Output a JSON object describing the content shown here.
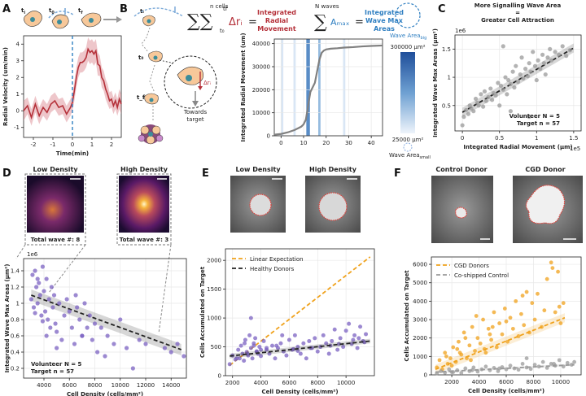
{
  "panels": [
    "A",
    "B",
    "C",
    "D",
    "E",
    "F"
  ],
  "colors": {
    "purple": "#7b62c2",
    "orange": "#f0a21c",
    "grey": "#9a9a9a",
    "red": "#b5313a",
    "blue": "#2f7fc1"
  },
  "panelA": {
    "stage_labels": [
      "t",
      "t",
      "t"
    ],
    "stage_subscripts": [
      "i",
      "0",
      "f"
    ],
    "chart_data": {
      "type": "line",
      "xlabel": "Time(min)",
      "ylabel": "Radial Velocity (um/min)",
      "xlim": [
        -2.5,
        2.5
      ],
      "ylim": [
        -1.6,
        4.5
      ],
      "xticks": [
        -2,
        -1,
        0,
        1,
        2
      ],
      "yticks": [
        -1,
        0,
        1,
        2,
        3,
        4
      ],
      "x": [
        -2.5,
        -2.3,
        -2.1,
        -1.9,
        -1.7,
        -1.5,
        -1.3,
        -1.1,
        -0.9,
        -0.7,
        -0.5,
        -0.3,
        -0.1,
        0.0,
        0.1,
        0.2,
        0.3,
        0.4,
        0.5,
        0.6,
        0.7,
        0.8,
        0.9,
        1.0,
        1.1,
        1.2,
        1.3,
        1.4,
        1.5,
        1.6,
        1.7,
        1.8,
        1.9,
        2.0,
        2.1,
        2.2,
        2.3,
        2.4,
        2.5
      ],
      "mean": [
        0.0,
        0.3,
        -0.4,
        0.4,
        -0.3,
        0.2,
        -0.1,
        0.4,
        0.6,
        0.2,
        0.3,
        -0.2,
        0.2,
        0.5,
        1.2,
        2.0,
        2.6,
        2.9,
        2.9,
        3.0,
        3.2,
        3.7,
        3.5,
        3.6,
        3.4,
        3.6,
        2.8,
        2.7,
        2.0,
        1.8,
        1.3,
        1.0,
        0.6,
        0.7,
        0.3,
        0.6,
        0.2,
        0.7,
        0.4
      ],
      "err": [
        0.6,
        0.5,
        0.5,
        0.5,
        0.5,
        0.5,
        0.5,
        0.5,
        0.5,
        0.5,
        0.5,
        0.5,
        0.5,
        0.5,
        0.6,
        0.6,
        0.6,
        0.6,
        0.6,
        0.6,
        0.6,
        0.7,
        0.7,
        0.7,
        0.7,
        0.7,
        0.7,
        0.6,
        0.6,
        0.6,
        0.6,
        0.6,
        0.5,
        0.5,
        0.5,
        0.5,
        0.5,
        0.6,
        0.6
      ]
    }
  },
  "panelB": {
    "eq1_top": "n cells",
    "eq1_sum": "∑∑",
    "eq1_sub": "t₀",
    "eq1_sup": "tf",
    "eq1_term": "Δrᵢ",
    "eq1_eq": "=",
    "eq1_label": [
      "Integrated",
      "Radial",
      "Movement"
    ],
    "eq2_top": "N waves",
    "eq2_sum": "∑",
    "eq2_term": "Aₘₐₓ",
    "eq2_eq": "=",
    "eq2_label": [
      "Integrated",
      "Wave Max",
      "Areas"
    ],
    "wave_big": "Wave Area",
    "wave_big_sub": "big",
    "wave_small": "Wave Area",
    "wave_small_sub": "small",
    "cbar_top": "300000 µm²",
    "cbar_bottom": "25000 µm²",
    "diagram_labels": {
      "t_i": "tᵢ",
      "t_0": "t₀",
      "t_f": "t_f",
      "dr": "Δrᵢ",
      "towards": [
        "Towards",
        "target"
      ]
    },
    "chart_data": {
      "type": "line",
      "xlabel": "",
      "ylabel": "Integrated Radial Movement (um)",
      "xlim": [
        -3,
        45
      ],
      "ylim": [
        0,
        42000
      ],
      "xticks": [
        0,
        10,
        20,
        30,
        40
      ],
      "yticks": [
        0,
        10000,
        20000,
        30000,
        40000
      ],
      "x": [
        -3,
        0,
        3,
        6,
        8,
        9,
        10,
        11,
        12,
        13,
        14,
        15,
        16,
        17,
        18,
        19,
        20,
        22,
        25,
        28,
        32,
        36,
        40,
        45
      ],
      "y": [
        500,
        800,
        1500,
        2500,
        3500,
        4000,
        5000,
        7000,
        13000,
        19000,
        21000,
        23000,
        28000,
        33000,
        36000,
        37000,
        37500,
        37800,
        38000,
        38300,
        38500,
        38800,
        39000,
        39200
      ],
      "wave_bands": [
        {
          "center": 0.5,
          "width": 1.0,
          "area": 40000
        },
        {
          "center": 6.0,
          "width": 1.0,
          "area": 30000
        },
        {
          "center": 12.0,
          "width": 1.6,
          "area": 300000
        },
        {
          "center": 17.0,
          "width": 1.0,
          "area": 130000
        },
        {
          "center": 28.0,
          "width": 1.0,
          "area": 60000
        }
      ]
    }
  },
  "panelC": {
    "title": [
      "More Signalling Wave Area",
      "=",
      "Greater Cell Attraction"
    ],
    "stats": [
      "Volunteer N = 5",
      "Target n = 57"
    ],
    "chart_data": {
      "type": "scatter",
      "xlabel": "Integrated Radial Movement (µm)",
      "ylabel": "Integrated Wave Max Areas (µm²)",
      "x_exponent": "1e5",
      "y_exponent": "1e6",
      "xlim": [
        -0.1,
        1.6
      ],
      "ylim": [
        0.05,
        1.75
      ],
      "xticks": [
        0.0,
        0.5,
        1.0,
        1.5
      ],
      "yticks": [
        0.5,
        1.0,
        1.5
      ],
      "fit": {
        "x": [
          0.0,
          1.5
        ],
        "y": [
          0.38,
          1.52
        ]
      },
      "x": [
        0.0,
        0.02,
        0.05,
        0.08,
        0.1,
        0.12,
        0.15,
        0.18,
        0.2,
        0.22,
        0.25,
        0.28,
        0.3,
        0.32,
        0.35,
        0.38,
        0.4,
        0.42,
        0.45,
        0.48,
        0.5,
        0.52,
        0.55,
        0.58,
        0.6,
        0.62,
        0.65,
        0.68,
        0.7,
        0.72,
        0.75,
        0.78,
        0.8,
        0.82,
        0.85,
        0.88,
        0.9,
        0.92,
        0.95,
        0.98,
        1.0,
        1.02,
        1.05,
        1.08,
        1.1,
        1.12,
        1.15,
        1.18,
        1.2,
        1.25,
        1.3,
        1.35,
        1.4,
        1.45,
        0.55,
        0.65,
        0.9
      ],
      "y": [
        0.15,
        0.3,
        0.42,
        0.35,
        0.5,
        0.45,
        0.4,
        0.62,
        0.55,
        0.5,
        0.7,
        0.48,
        0.75,
        0.58,
        0.65,
        0.8,
        0.6,
        0.72,
        0.68,
        0.9,
        0.5,
        0.85,
        0.78,
        1.0,
        0.7,
        0.95,
        0.88,
        1.1,
        0.82,
        1.2,
        0.92,
        1.05,
        1.35,
        0.98,
        1.15,
        1.02,
        1.25,
        1.1,
        1.45,
        1.2,
        0.95,
        1.3,
        1.15,
        1.4,
        1.25,
        1.05,
        1.35,
        1.5,
        1.3,
        1.45,
        1.4,
        1.55,
        1.38,
        1.48,
        1.55,
        0.4,
        0.3
      ]
    }
  },
  "panelD": {
    "low_title": "Low Density",
    "high_title": "High Density",
    "low_wave": "Total wave #: 8",
    "high_wave": "Total wave #: 3",
    "stats": [
      "Volunteer N = 5",
      "Target n = 57"
    ],
    "chart_data": {
      "type": "scatter",
      "xlabel": "Cell Density (cells/mm²)",
      "ylabel": "Integrated Wave Max Areas (µm²)",
      "y_exponent": "1e6",
      "xlim": [
        2400,
        15200
      ],
      "ylim": [
        0.08,
        1.55
      ],
      "xticks": [
        4000,
        6000,
        8000,
        10000,
        12000,
        14000
      ],
      "xtick_labels": [
        "4000",
        "6000",
        "8000",
        "10000",
        "12000",
        "14000"
      ],
      "yticks": [
        0.2,
        0.4,
        0.6,
        0.8,
        1.0,
        1.2,
        1.4
      ],
      "fit": {
        "x": [
          3000,
          14800
        ],
        "y": [
          1.1,
          0.43
        ]
      },
      "x": [
        3000,
        3100,
        3200,
        3300,
        3400,
        3500,
        3600,
        3700,
        3800,
        3900,
        4000,
        4100,
        4200,
        4300,
        4400,
        4500,
        4600,
        4700,
        4800,
        4900,
        5000,
        5200,
        5400,
        5600,
        5800,
        6000,
        6200,
        6400,
        6600,
        6800,
        7000,
        7200,
        7400,
        7600,
        7800,
        8000,
        8200,
        8500,
        9000,
        9500,
        10000,
        10500,
        11000,
        11500,
        12000,
        13500,
        14000,
        14500,
        15000,
        3500,
        4200,
        5000,
        6500,
        7000,
        3300,
        3900,
        8800
      ],
      "y": [
        1.05,
        1.35,
        0.95,
        1.4,
        1.2,
        1.0,
        1.25,
        1.1,
        0.85,
        1.45,
        1.15,
        0.9,
        1.3,
        0.8,
        1.05,
        0.7,
        1.2,
        0.95,
        1.1,
        0.75,
        0.65,
        1.0,
        0.55,
        0.85,
        1.05,
        0.9,
        0.7,
        0.5,
        0.95,
        0.8,
        0.6,
        1.0,
        0.7,
        0.85,
        0.55,
        0.75,
        0.4,
        0.7,
        0.6,
        0.5,
        0.8,
        0.45,
        0.2,
        0.55,
        0.5,
        0.45,
        0.4,
        0.5,
        0.35,
        1.3,
        0.6,
        0.45,
        1.1,
        0.6,
        0.88,
        0.78,
        0.35
      ]
    }
  },
  "panelE": {
    "low_title": "Low Density",
    "high_title": "High Density",
    "legend": [
      "Linear Expectation",
      "Healthy Donors"
    ],
    "chart_data": {
      "type": "scatter",
      "xlabel": "Cell Density (cells/mm²)",
      "ylabel": "Cells Accumulated on Target",
      "xlim": [
        1500,
        12000
      ],
      "ylim": [
        0,
        2200
      ],
      "xticks": [
        2000,
        4000,
        6000,
        8000,
        10000
      ],
      "yticks": [
        0,
        500,
        1000,
        1500,
        2000
      ],
      "linear_expectation": {
        "x": [
          1800,
          11700
        ],
        "y": [
          180,
          2060
        ]
      },
      "fit": {
        "x": [
          1800,
          11700
        ],
        "y": [
          340,
          600
        ]
      },
      "x": [
        1800,
        2000,
        2200,
        2400,
        2500,
        2600,
        2700,
        2800,
        2900,
        3000,
        3100,
        3200,
        3300,
        3400,
        3500,
        3600,
        3700,
        3800,
        3900,
        4000,
        4200,
        4400,
        4600,
        4800,
        5000,
        5200,
        5400,
        5600,
        5800,
        6000,
        6200,
        6400,
        6600,
        6800,
        7000,
        7200,
        7400,
        7600,
        7800,
        8000,
        8200,
        8400,
        8600,
        8800,
        9000,
        9200,
        9400,
        9600,
        9800,
        10000,
        10200,
        10400,
        10600,
        10800,
        11000,
        11200,
        11400,
        3300,
        3500,
        4000,
        5500,
        7500,
        9500,
        10500,
        3050,
        2850,
        4400,
        6600,
        8900,
        10900,
        11300,
        2300,
        3700,
        5100,
        6300
      ],
      "y": [
        200,
        350,
        280,
        450,
        300,
        520,
        380,
        260,
        620,
        410,
        350,
        700,
        480,
        300,
        560,
        650,
        420,
        380,
        500,
        340,
        600,
        450,
        380,
        520,
        300,
        480,
        560,
        420,
        350,
        620,
        450,
        700,
        500,
        380,
        560,
        300,
        600,
        480,
        650,
        420,
        500,
        700,
        560,
        380,
        600,
        800,
        450,
        650,
        500,
        780,
        900,
        550,
        700,
        480,
        850,
        600,
        720,
        1000,
        520,
        450,
        700,
        480,
        550,
        620,
        380,
        560,
        480,
        430,
        520,
        650,
        580,
        300,
        420,
        520,
        460
      ]
    }
  },
  "panelF": {
    "control_title": "Control Donor",
    "cgd_title": "CGD Donor",
    "legend": [
      "CGD Donors",
      "Co-shipped Control"
    ],
    "chart_data": {
      "type": "scatter",
      "xlabel": "Cell Density (cells/mm²)",
      "ylabel": "Cells Accumulated on Target",
      "xlim": [
        500,
        11500
      ],
      "ylim": [
        0,
        6400
      ],
      "xticks": [
        2000,
        4000,
        6000,
        8000,
        10000
      ],
      "yticks": [
        0,
        1000,
        2000,
        3000,
        4000,
        5000,
        6000
      ],
      "series": [
        {
          "name": "CGD Donors",
          "fit": {
            "x": [
              800,
              10300
            ],
            "y": [
              300,
              3100
            ]
          },
          "x": [
            900,
            1100,
            1300,
            1500,
            1700,
            1900,
            2100,
            2300,
            2500,
            2700,
            2900,
            3100,
            3300,
            3500,
            3700,
            3900,
            4100,
            4300,
            4500,
            4700,
            4900,
            5100,
            5300,
            5500,
            5700,
            5900,
            6100,
            6300,
            6500,
            6700,
            6900,
            7100,
            7300,
            7500,
            7700,
            7900,
            8100,
            8300,
            8600,
            9000,
            9300,
            9600,
            9800,
            10000,
            10200,
            2000,
            2600,
            3000,
            3400,
            3800,
            4400,
            5000,
            6000,
            7200,
            8800,
            9400,
            9900,
            4800,
            1600,
            2400
          ],
          "y": [
            400,
            800,
            300,
            1200,
            600,
            900,
            1500,
            700,
            1800,
            1100,
            2300,
            900,
            1600,
            2600,
            1300,
            2000,
            1700,
            3000,
            1200,
            2500,
            1900,
            3400,
            1500,
            2800,
            2200,
            3600,
            1800,
            3100,
            2500,
            4000,
            2100,
            3300,
            2700,
            4500,
            2300,
            3900,
            3000,
            4400,
            2600,
            5200,
            6100,
            3400,
            5600,
            2800,
            3900,
            500,
            1200,
            2000,
            800,
            3200,
            1400,
            2600,
            2900,
            4300,
            3500,
            5800,
            3700,
            2200,
            1000,
            1400
          ]
        },
        {
          "name": "Co-shipped Control",
          "fit": {
            "x": [
              800,
              11000
            ],
            "y": [
              150,
              550
            ]
          },
          "x": [
            900,
            1200,
            1500,
            1800,
            2100,
            2400,
            2700,
            3000,
            3300,
            3600,
            3900,
            4200,
            4500,
            4800,
            5100,
            5400,
            5700,
            6000,
            6300,
            6600,
            6900,
            7200,
            7500,
            7800,
            8100,
            8400,
            8700,
            9000,
            9300,
            9600,
            9900,
            10200,
            10500,
            10800,
            11000,
            2000,
            3500,
            5500,
            7500,
            9500
          ],
          "y": [
            80,
            200,
            120,
            300,
            150,
            250,
            100,
            350,
            200,
            400,
            180,
            300,
            450,
            250,
            380,
            200,
            420,
            300,
            500,
            350,
            280,
            600,
            400,
            320,
            550,
            450,
            700,
            380,
            600,
            500,
            800,
            450,
            650,
            550,
            700,
            150,
            250,
            350,
            900,
            600
          ]
        }
      ]
    }
  }
}
